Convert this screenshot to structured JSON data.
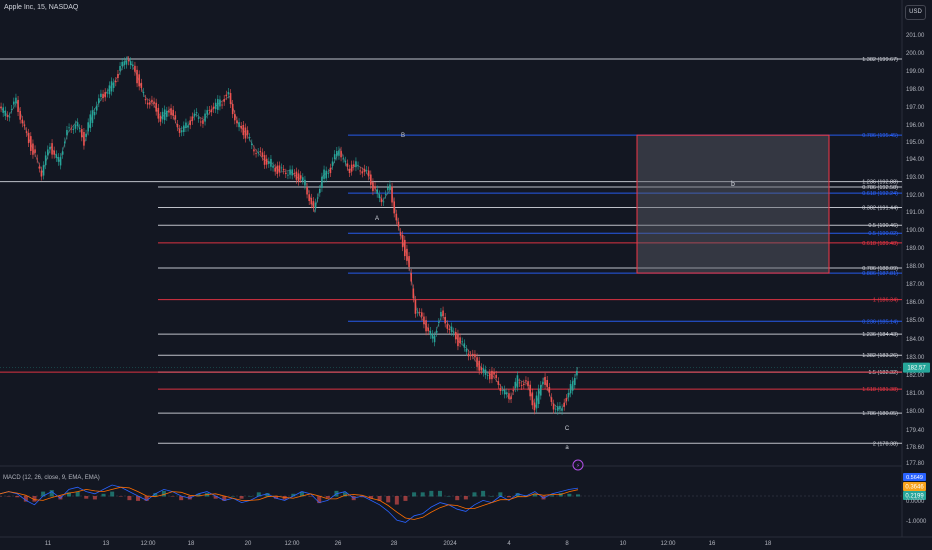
{
  "header": {
    "title": "Apple Inc, 15, NASDAQ",
    "currency_button": "USD"
  },
  "colors": {
    "background": "#131722",
    "up": "#26a69a",
    "down": "#ef5350",
    "white": "#d1d4dc",
    "blue": "#2962ff",
    "red": "#f23645",
    "box_fill": "#5d606b"
  },
  "price_axis": {
    "ticks": [
      "201.00",
      "200.00",
      "199.00",
      "198.00",
      "197.00",
      "196.00",
      "195.00",
      "194.00",
      "193.00",
      "192.00",
      "191.00",
      "190.00",
      "189.00",
      "188.00",
      "187.00",
      "186.00",
      "185.00",
      "184.00",
      "183.00",
      "182.00",
      "181.00",
      "180.00",
      "179.40",
      "178.60",
      "177.80"
    ],
    "current_price": "182.57",
    "current_price_color": "#26a69a"
  },
  "time_axis": {
    "labels": [
      "11",
      "13",
      "12:00",
      "18",
      "20",
      "12:00",
      "26",
      "28",
      "2024",
      "4",
      "8",
      "10",
      "12:00",
      "16",
      "18"
    ]
  },
  "levels": [
    {
      "label": "1.382 (199.67)",
      "price": 199.67,
      "color": "#d1d4dc",
      "scope": "full"
    },
    {
      "label": "0.786 (195.45)",
      "price": 195.45,
      "color": "#2962ff",
      "scope": "partial"
    },
    {
      "label": "1.236 (192.88)",
      "price": 192.88,
      "color": "#d1d4dc",
      "scope": "full"
    },
    {
      "label": "0.786 (192.58)",
      "price": 192.58,
      "color": "#d1d4dc",
      "scope": "partial"
    },
    {
      "label": "0.618 (192.24)",
      "price": 192.24,
      "color": "#2962ff",
      "scope": "partial"
    },
    {
      "label": "0.382 (191.44)",
      "price": 191.44,
      "color": "#d1d4dc",
      "scope": "partial"
    },
    {
      "label": "0.5 (190.46)",
      "price": 190.46,
      "color": "#d1d4dc",
      "scope": "partial"
    },
    {
      "label": "0.5 (190.02)",
      "price": 190.02,
      "color": "#2962ff",
      "scope": "partial"
    },
    {
      "label": "0.618 (189.48)",
      "price": 189.48,
      "color": "#f23645",
      "scope": "partial"
    },
    {
      "label": "0.786 (188.09)",
      "price": 188.09,
      "color": "#d1d4dc",
      "scope": "partial"
    },
    {
      "label": "0.886 (187.81)",
      "price": 187.81,
      "color": "#2962ff",
      "scope": "partial"
    },
    {
      "label": "1 (186.34)",
      "price": 186.34,
      "color": "#f23645",
      "scope": "partial"
    },
    {
      "label": "0.236 (185.14)",
      "price": 185.14,
      "color": "#2962ff",
      "scope": "partial"
    },
    {
      "label": "1.236 (184.43)",
      "price": 184.43,
      "color": "#d1d4dc",
      "scope": "partial"
    },
    {
      "label": "1.382 (183.26)",
      "price": 183.26,
      "color": "#d1d4dc",
      "scope": "partial"
    },
    {
      "label": "1.5 (182.32)",
      "price": 182.32,
      "color": "#d1d4dc",
      "scope": "partial"
    },
    {
      "label": "",
      "price": 182.32,
      "color": "#f23645",
      "scope": "full"
    },
    {
      "label": "1.618 (181.38)",
      "price": 181.38,
      "color": "#f23645",
      "scope": "partial"
    },
    {
      "label": "1.786 (180.05)",
      "price": 180.05,
      "color": "#d1d4dc",
      "scope": "partial"
    },
    {
      "label": "2 (178.38)",
      "price": 178.38,
      "color": "#d1d4dc",
      "scope": "partial"
    }
  ],
  "wave_labels": [
    "B",
    "A",
    "C",
    "a",
    "b"
  ],
  "box": {
    "label": "b",
    "top_price": 195.45,
    "bottom_price": 187.81
  },
  "macd": {
    "title": "MACD (12, 26, close, 9, EMA, EMA)",
    "values": [
      {
        "text": "0.3646",
        "color": "#f7a21b"
      },
      {
        "text": "0.2199",
        "color": "#26a69a"
      }
    ],
    "axis_ticks": [
      "0.0000",
      "-1.0000"
    ],
    "top_tag": "0.5649"
  },
  "price_path": [
    197.0,
    196.5,
    197.3,
    195.8,
    194.5,
    193.4,
    194.8,
    194.0,
    195.6,
    196.2,
    195.1,
    196.8,
    197.5,
    198.1,
    198.8,
    199.8,
    198.9,
    197.6,
    197.2,
    196.4,
    196.9,
    195.8,
    195.9,
    196.6,
    196.3,
    196.9,
    197.3,
    197.6,
    196.1,
    195.5,
    194.7,
    194.1,
    193.9,
    193.4,
    193.5,
    193.1,
    192.8,
    191.2,
    193.2,
    193.6,
    194.7,
    193.5,
    193.8,
    193.5,
    192.6,
    191.8,
    192.5,
    190.2,
    188.6,
    185.8,
    185.0,
    184.2,
    185.5,
    184.8,
    184.0,
    183.6,
    182.9,
    182.4,
    182.1,
    181.5,
    180.8,
    181.9,
    181.7,
    180.4,
    182.0,
    180.6,
    180.2,
    181.1,
    182.6
  ],
  "macd_path": [
    0.1,
    0.2,
    0.1,
    -0.2,
    -0.4,
    0.0,
    0.2,
    -0.1,
    0.3,
    0.4,
    0.2,
    0.1,
    0.3,
    0.5,
    0.4,
    0.2,
    0.0,
    -0.2,
    0.1,
    0.3,
    0.2,
    0.0,
    -0.1,
    0.1,
    0.2,
    0.0,
    -0.2,
    -0.1,
    -0.3,
    -0.2,
    0.0,
    0.1,
    -0.1,
    -0.2,
    0.0,
    0.2,
    0.1,
    -0.3,
    -0.2,
    0.1,
    0.2,
    -0.1,
    0.0,
    -0.2,
    -0.4,
    -0.7,
    -1.1,
    -1.2,
    -0.9,
    -0.8,
    -0.5,
    -0.3,
    -0.4,
    -0.6,
    -0.7,
    -0.4,
    -0.2,
    -0.3,
    0.0,
    -0.2,
    0.1,
    0.0,
    0.2,
    -0.1,
    0.1,
    0.2,
    0.3,
    0.36
  ]
}
